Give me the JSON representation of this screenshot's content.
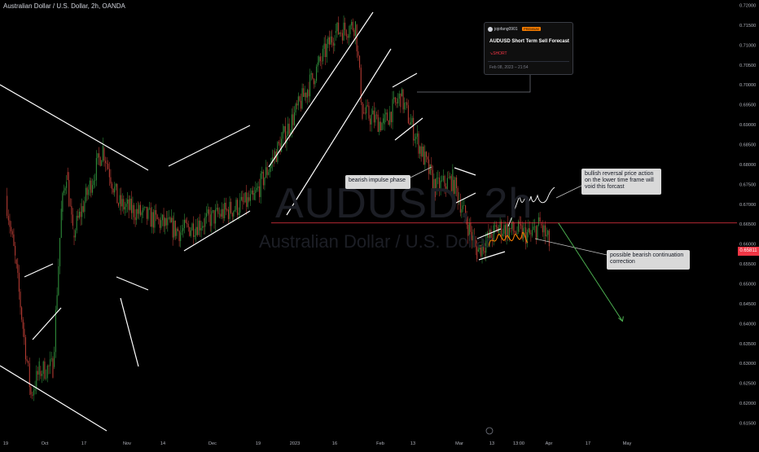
{
  "header": {
    "title": "Australian Dollar / U.S. Dollar, 2h, OANDA"
  },
  "watermark": {
    "symbol": "AUDUSD, 2h",
    "name": "Australian Dollar / U.S. Dollar"
  },
  "idea_card": {
    "author": "jojofang0901",
    "badge": "PREMIUM",
    "title": "AUDUSD Short Term Sell Forecast",
    "direction": "SHORT",
    "direction_icon": "arrow-down-right-icon",
    "date": "Feb 08, 2023 – 21:54"
  },
  "annotations": {
    "impulse": "bearish impulse phase",
    "bullish": "bullish reversal price action on the lower time frame will void this forcast",
    "bearish": "possible bearish continuation correction"
  },
  "last_price_label": "0.65811",
  "colors": {
    "background": "#000000",
    "candle_up": "#2e8a3a",
    "candle_down": "#b23a32",
    "trendline": "#ffffff",
    "support_line": "#f23645",
    "projection": "#4caf50",
    "scribble_orange": "#f57c00",
    "scribble_green": "#ffffff",
    "axis_text": "#b2b5be"
  },
  "chart_data": {
    "type": "line",
    "title": "Australian Dollar / U.S. Dollar, 2h, OANDA",
    "y_axis": {
      "ylim": [
        0.608,
        0.721
      ],
      "ticks": [
        "0.72000",
        "0.71500",
        "0.71000",
        "0.70500",
        "0.70000",
        "0.69500",
        "0.69000",
        "0.68500",
        "0.68000",
        "0.67500",
        "0.67000",
        "0.66500",
        "0.66000",
        "0.65500",
        "0.65000",
        "0.64500",
        "0.64000",
        "0.63500",
        "0.63000",
        "0.62500",
        "0.62000",
        "0.61500"
      ]
    },
    "x_axis": {
      "ticks": [
        "19",
        "Oct",
        "17",
        "Nov",
        "14",
        "Dec",
        "19",
        "2023",
        "16",
        "Feb",
        "13",
        "Mar",
        "13",
        "13:00",
        "Apr",
        "17",
        "May"
      ]
    },
    "price_path": [
      {
        "x": "Sep 19",
        "y": 0.672
      },
      {
        "x": "Sep 28",
        "y": 0.656
      },
      {
        "x": "Oct 13",
        "y": 0.622
      },
      {
        "x": "Oct 21",
        "y": 0.628
      },
      {
        "x": "Nov 3",
        "y": 0.629
      },
      {
        "x": "Nov 11",
        "y": 0.668
      },
      {
        "x": "Nov 16",
        "y": 0.678
      },
      {
        "x": "Nov 22",
        "y": 0.662
      },
      {
        "x": "Dec 5",
        "y": 0.684
      },
      {
        "x": "Dec 8",
        "y": 0.67
      },
      {
        "x": "Dec 20",
        "y": 0.663
      },
      {
        "x": "Jan 3",
        "y": 0.671
      },
      {
        "x": "Jan 26",
        "y": 0.713
      },
      {
        "x": "Feb 1",
        "y": 0.715
      },
      {
        "x": "Feb 3",
        "y": 0.693
      },
      {
        "x": "Feb 9",
        "y": 0.69
      },
      {
        "x": "Feb 14",
        "y": 0.697
      },
      {
        "x": "Feb 24",
        "y": 0.674
      },
      {
        "x": "Mar 1",
        "y": 0.676
      },
      {
        "x": "Mar 8",
        "y": 0.658
      },
      {
        "x": "Mar 13",
        "y": 0.664
      },
      {
        "x": "Mar 17",
        "y": 0.663
      },
      {
        "x": "Mar 20",
        "y": 0.662
      },
      {
        "x": "Mar 22",
        "y": 0.665
      },
      {
        "x": "Mar 24",
        "y": 0.66
      }
    ],
    "support_level": 0.6652,
    "current_price": 0.65811,
    "projection": {
      "from": {
        "x": "Mar 26",
        "y": 0.6652
      },
      "to": {
        "x": "Apr 9",
        "y": 0.6405
      }
    }
  }
}
